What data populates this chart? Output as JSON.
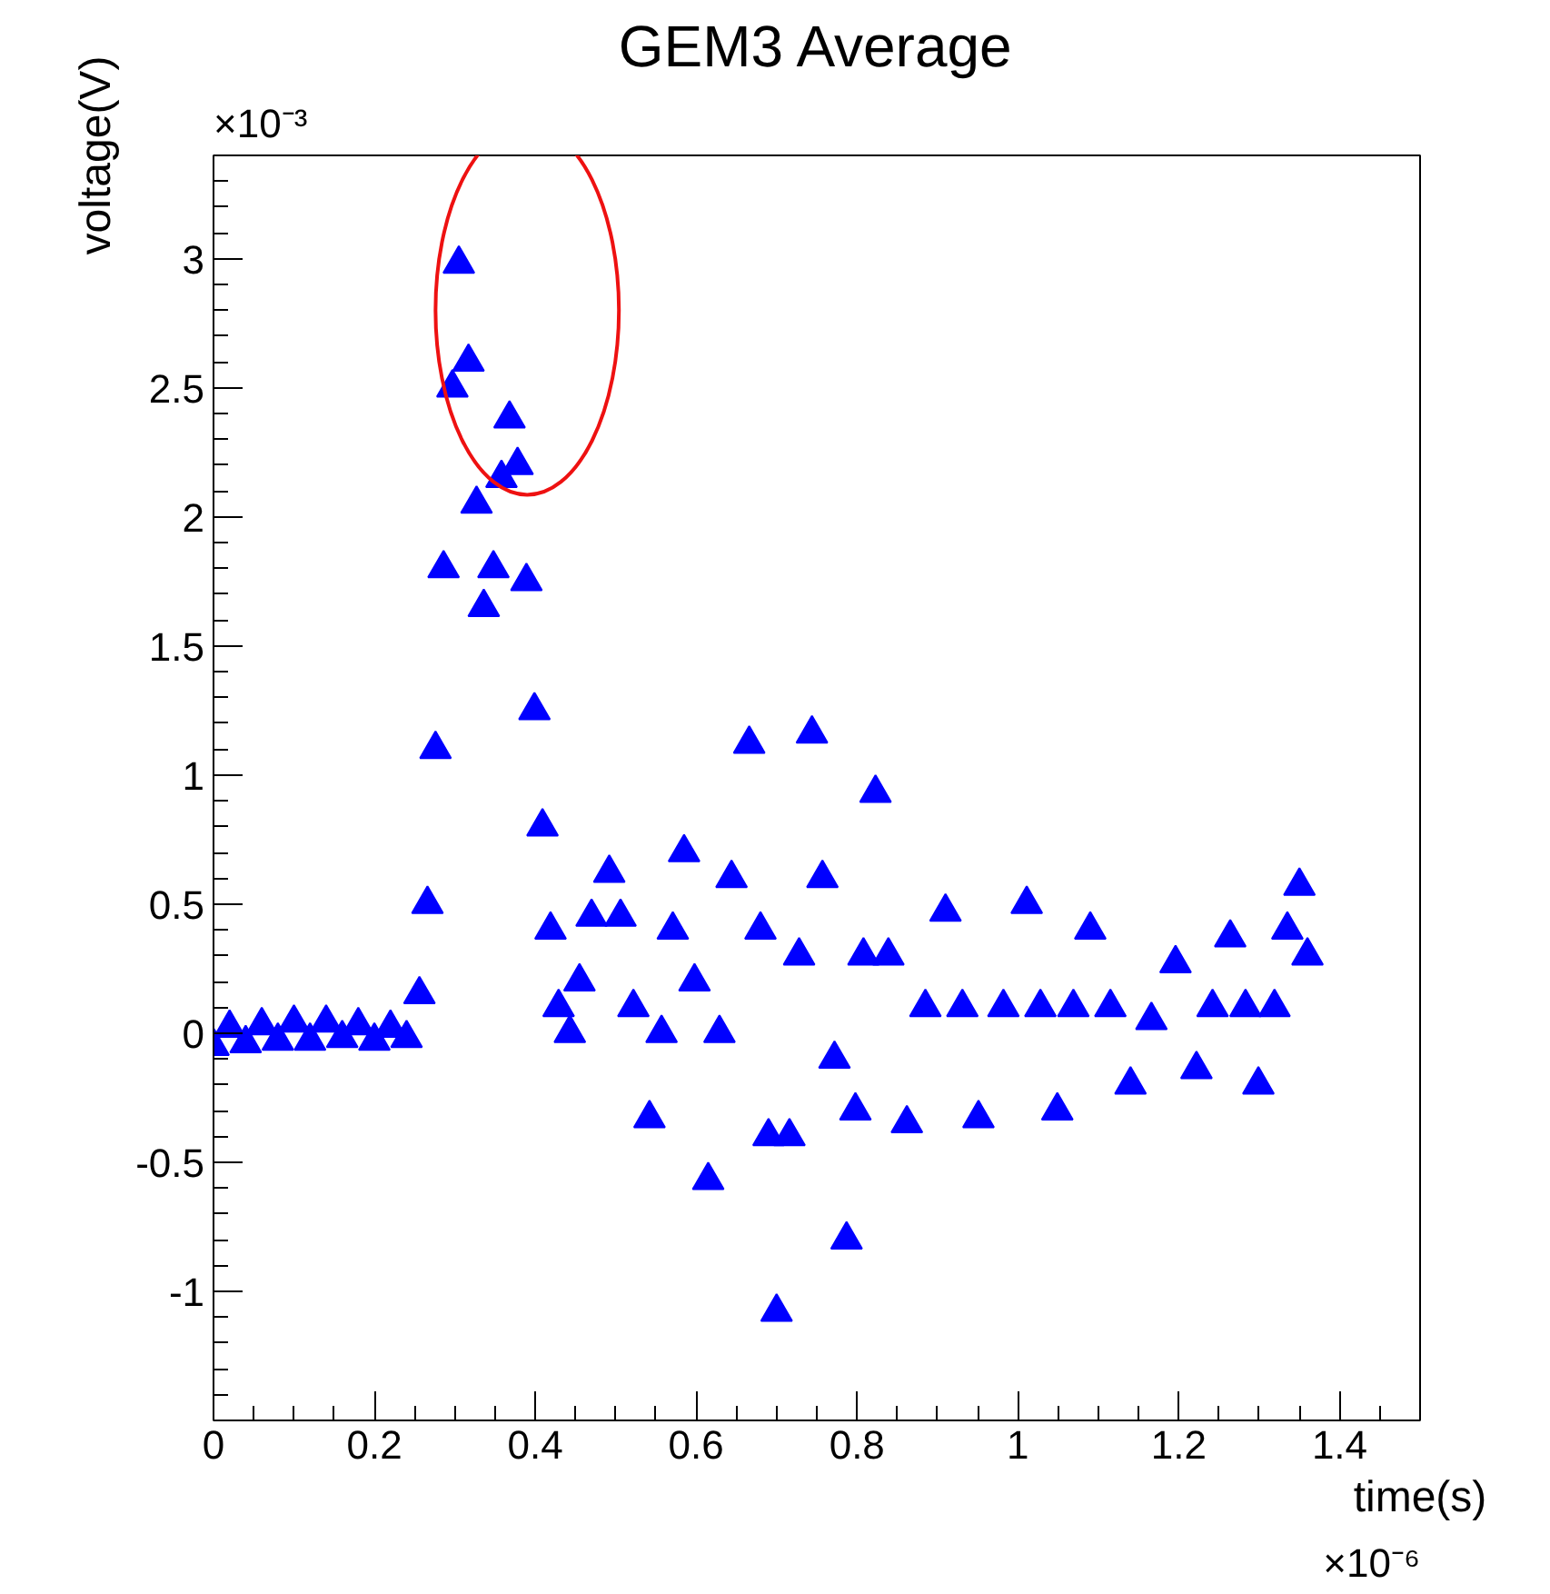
{
  "chart_data": {
    "type": "scatter",
    "title": "GEM3 Average",
    "xlabel": "time(s)",
    "ylabel": "voltage(V)",
    "annotations": [
      "×10⁻³",
      "×10⁻⁶"
    ],
    "marker": "triangle",
    "grid": false,
    "xlim": [
      0,
      1.5
    ],
    "ylim": [
      -1.5,
      3.4
    ],
    "xticks": [
      0,
      0.2,
      0.4,
      0.6,
      0.8,
      1,
      1.2,
      1.4
    ],
    "yticks": [
      -1,
      -0.5,
      0,
      0.5,
      1,
      1.5,
      2,
      2.5,
      3
    ],
    "series": [
      {
        "color": "#0000ff",
        "x": [
          0,
          0.02,
          0.04,
          0.06,
          0.08,
          0.1,
          0.12,
          0.14,
          0.16,
          0.18,
          0.2,
          0.22,
          0.24,
          0.256,
          0.266,
          0.276,
          0.286,
          0.297,
          0.305,
          0.317,
          0.327,
          0.336,
          0.348,
          0.358,
          0.368,
          0.378,
          0.389,
          0.399,
          0.409,
          0.419,
          0.429,
          0.443,
          0.455,
          0.47,
          0.492,
          0.506,
          0.522,
          0.542,
          0.557,
          0.571,
          0.585,
          0.598,
          0.615,
          0.629,
          0.644,
          0.666,
          0.68,
          0.69,
          0.7,
          0.716,
          0.728,
          0.744,
          0.757,
          0.772,
          0.787,
          0.798,
          0.808,
          0.823,
          0.839,
          0.862,
          0.885,
          0.91,
          0.931,
          0.951,
          0.982,
          1.011,
          1.028,
          1.049,
          1.069,
          1.09,
          1.115,
          1.14,
          1.166,
          1.196,
          1.222,
          1.242,
          1.264,
          1.283,
          1.299,
          1.319,
          1.335,
          1.35,
          1.36
        ],
        "values": [
          -0.05,
          0.02,
          -0.04,
          0.03,
          -0.03,
          0.04,
          -0.03,
          0.04,
          -0.02,
          0.03,
          -0.03,
          0.02,
          -0.02,
          0.15,
          0.5,
          1.1,
          1.8,
          2.5,
          2.98,
          2.6,
          2.05,
          1.65,
          1.8,
          2.15,
          2.38,
          2.2,
          1.75,
          1.25,
          0.8,
          0.4,
          0.1,
          0.0,
          0.2,
          0.45,
          0.62,
          0.45,
          0.1,
          -0.33,
          0.0,
          0.4,
          0.7,
          0.2,
          -0.57,
          0.0,
          0.6,
          1.12,
          0.4,
          -0.4,
          -1.08,
          -0.4,
          0.3,
          1.16,
          0.6,
          -0.1,
          -0.8,
          -0.3,
          0.3,
          0.93,
          0.3,
          -0.35,
          0.1,
          0.47,
          0.1,
          -0.33,
          0.1,
          0.5,
          0.1,
          -0.3,
          0.1,
          0.4,
          0.1,
          -0.2,
          0.05,
          0.27,
          -0.14,
          0.1,
          0.37,
          0.1,
          -0.2,
          0.1,
          0.4,
          0.57,
          0.3
        ]
      }
    ]
  }
}
